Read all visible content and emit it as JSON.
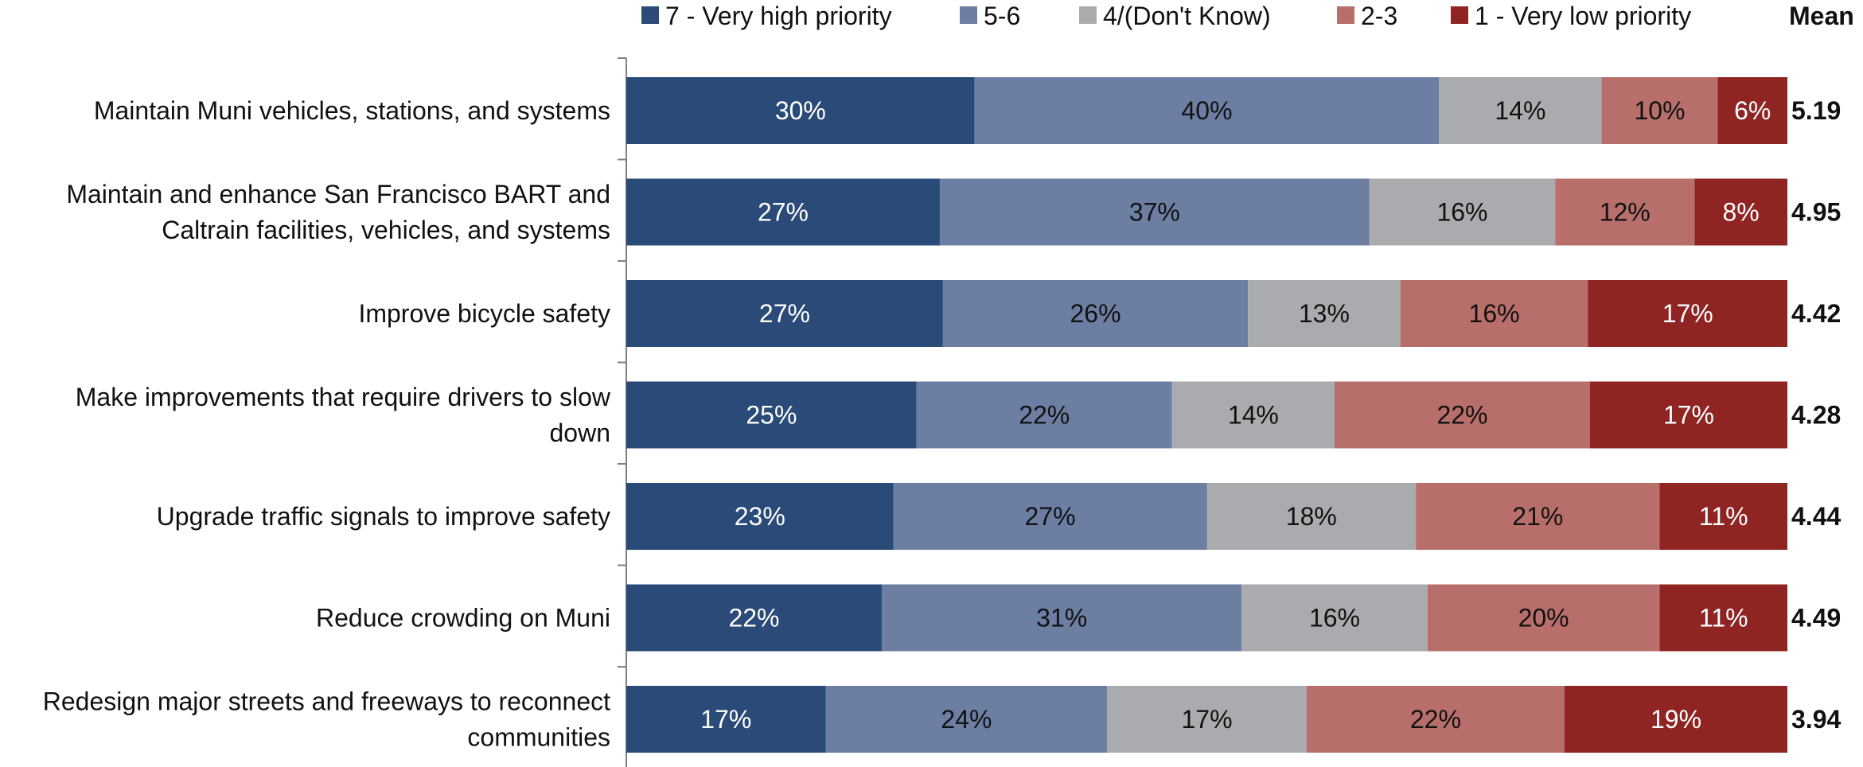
{
  "chart_data": {
    "type": "bar",
    "orientation": "horizontal",
    "stacked": true,
    "legend_position": "top",
    "mean_header": "Mean",
    "series": [
      {
        "name": "7 - Very high priority",
        "color": "#2a4a78",
        "label_color": "#ffffff"
      },
      {
        "name": "5-6",
        "color": "#6d7ea3",
        "label_color": "#111111"
      },
      {
        "name": "4/(Don't Know)",
        "color": "#a9abae",
        "label_color": "#111111"
      },
      {
        "name": "2-3",
        "color": "#b86f6c",
        "label_color": "#111111"
      },
      {
        "name": "1 - Very low priority",
        "color": "#8f2422",
        "label_color": "#ffffff"
      }
    ],
    "rows": [
      {
        "lines": [
          "Maintain Muni vehicles, stations, and systems"
        ],
        "values": [
          30,
          40,
          14,
          10,
          6
        ],
        "value_labels": [
          "30%",
          "40%",
          "14%",
          "10%",
          "6%"
        ],
        "mean": "5.19"
      },
      {
        "lines": [
          "Maintain and enhance San Francisco BART and",
          "Caltrain facilities, vehicles, and systems"
        ],
        "values": [
          27,
          37,
          16,
          12,
          8
        ],
        "value_labels": [
          "27%",
          "37%",
          "16%",
          "12%",
          "8%"
        ],
        "mean": "4.95"
      },
      {
        "lines": [
          "Improve bicycle safety"
        ],
        "values": [
          27,
          26,
          13,
          16,
          17
        ],
        "value_labels": [
          "27%",
          "26%",
          "13%",
          "16%",
          "17%"
        ],
        "mean": "4.42"
      },
      {
        "lines": [
          "Make improvements that require drivers to slow",
          "down"
        ],
        "values": [
          25,
          22,
          14,
          22,
          17
        ],
        "value_labels": [
          "25%",
          "22%",
          "14%",
          "22%",
          "17%"
        ],
        "mean": "4.28"
      },
      {
        "lines": [
          "Upgrade traffic signals to improve safety"
        ],
        "values": [
          23,
          27,
          18,
          21,
          11
        ],
        "value_labels": [
          "23%",
          "27%",
          "18%",
          "21%",
          "11%"
        ],
        "mean": "4.44"
      },
      {
        "lines": [
          "Reduce crowding on Muni"
        ],
        "values": [
          22,
          31,
          16,
          20,
          11
        ],
        "value_labels": [
          "22%",
          "31%",
          "16%",
          "20%",
          "11%"
        ],
        "mean": "4.49"
      },
      {
        "lines": [
          "Redesign major streets and freeways to reconnect",
          "communities"
        ],
        "values": [
          17,
          24,
          17,
          22,
          19
        ],
        "value_labels": [
          "17%",
          "24%",
          "17%",
          "22%",
          "19%"
        ],
        "mean": "3.94"
      }
    ]
  }
}
